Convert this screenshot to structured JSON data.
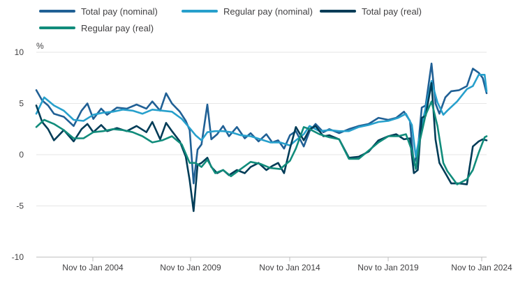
{
  "chart_data": {
    "type": "line",
    "title": "",
    "xlabel": "",
    "ylabel": "%",
    "ylim": [
      -10,
      10
    ],
    "yticks": [
      10,
      5,
      0,
      -5,
      -10
    ],
    "xticks": [
      "Nov to Jan 2004",
      "Nov to Jan 2009",
      "Nov to Jan 2014",
      "Nov to Jan 2019",
      "Nov to Jan 2024"
    ],
    "xrange": [
      2001.1,
      2024.0
    ],
    "grid": "horizontal",
    "legend_position": "top-left",
    "series": [
      {
        "name": "Total pay (nominal)",
        "color": "#206095",
        "x": [
          2001.1,
          2001.4,
          2001.7,
          2002.0,
          2002.5,
          2003.0,
          2003.4,
          2003.7,
          2004.0,
          2004.4,
          2004.7,
          2005.2,
          2005.7,
          2006.2,
          2006.7,
          2007.0,
          2007.4,
          2007.7,
          2008.0,
          2008.4,
          2008.7,
          2008.9,
          2009.1,
          2009.3,
          2009.5,
          2009.8,
          2010.0,
          2010.3,
          2010.6,
          2010.9,
          2011.3,
          2011.7,
          2012.0,
          2012.4,
          2012.8,
          2013.1,
          2013.4,
          2013.7,
          2014.0,
          2014.3,
          2014.7,
          2015.0,
          2015.3,
          2015.7,
          2016.0,
          2016.5,
          2017.0,
          2017.5,
          2018.0,
          2018.5,
          2019.0,
          2019.4,
          2019.8,
          2020.1,
          2020.3,
          2020.5,
          2020.7,
          2020.9,
          2021.2,
          2021.4,
          2021.6,
          2021.9,
          2022.2,
          2022.6,
          2023.0,
          2023.3,
          2023.6,
          2023.8,
          2024.0
        ],
        "values": [
          6.3,
          5.3,
          4.8,
          4.0,
          3.7,
          2.8,
          4.3,
          5.0,
          3.5,
          4.5,
          3.9,
          4.6,
          4.5,
          4.9,
          4.5,
          5.2,
          4.3,
          6.0,
          5.0,
          4.2,
          3.3,
          2.4,
          -2.8,
          0.5,
          1.0,
          4.9,
          1.5,
          2.0,
          2.8,
          1.8,
          2.7,
          1.6,
          2.1,
          1.3,
          2.0,
          1.2,
          1.4,
          0.6,
          1.9,
          2.3,
          0.8,
          2.3,
          3.0,
          2.2,
          2.5,
          2.1,
          2.5,
          2.8,
          3.0,
          3.6,
          3.4,
          3.6,
          4.2,
          3.3,
          -1.0,
          0.4,
          4.6,
          4.8,
          8.9,
          5.0,
          4.0,
          5.6,
          6.2,
          6.3,
          6.7,
          8.4,
          8.0,
          7.5,
          6.0
        ]
      },
      {
        "name": "Regular pay (nominal)",
        "color": "#27a0cc",
        "x": [
          2001.1,
          2001.5,
          2002.0,
          2002.5,
          2003.0,
          2003.5,
          2004.0,
          2004.5,
          2005.0,
          2005.5,
          2006.0,
          2006.5,
          2007.0,
          2007.5,
          2008.0,
          2008.5,
          2008.9,
          2009.2,
          2009.5,
          2009.8,
          2010.2,
          2010.6,
          2011.0,
          2011.5,
          2012.0,
          2012.5,
          2013.0,
          2013.5,
          2014.0,
          2014.3,
          2014.7,
          2015.0,
          2015.5,
          2016.0,
          2016.5,
          2017.0,
          2017.5,
          2018.0,
          2018.5,
          2019.0,
          2019.5,
          2019.9,
          2020.2,
          2020.4,
          2020.6,
          2020.9,
          2021.2,
          2021.5,
          2021.8,
          2022.0,
          2022.5,
          2023.0,
          2023.3,
          2023.6,
          2023.9,
          2024.0
        ],
        "values": [
          4.0,
          5.6,
          4.8,
          4.3,
          3.4,
          3.3,
          3.9,
          4.1,
          4.2,
          4.4,
          4.3,
          4.0,
          4.4,
          4.3,
          4.2,
          3.5,
          2.6,
          1.9,
          1.4,
          2.2,
          2.3,
          2.3,
          2.2,
          1.9,
          1.8,
          1.5,
          1.2,
          1.2,
          0.9,
          1.4,
          2.0,
          2.8,
          2.3,
          2.4,
          2.3,
          2.3,
          2.7,
          2.9,
          3.2,
          3.3,
          3.6,
          4.0,
          2.9,
          -0.2,
          1.9,
          4.6,
          7.2,
          5.1,
          3.9,
          4.3,
          5.2,
          6.4,
          6.7,
          7.8,
          7.8,
          6.2
        ]
      },
      {
        "name": "Total pay (real)",
        "color": "#003c57",
        "x": [
          2001.1,
          2001.4,
          2001.7,
          2002.0,
          2002.5,
          2003.0,
          2003.4,
          2003.7,
          2004.0,
          2004.4,
          2004.7,
          2005.2,
          2005.7,
          2006.2,
          2006.7,
          2007.0,
          2007.4,
          2007.7,
          2008.0,
          2008.4,
          2008.7,
          2008.9,
          2009.1,
          2009.3,
          2009.5,
          2009.8,
          2010.0,
          2010.3,
          2010.6,
          2010.9,
          2011.3,
          2011.7,
          2012.0,
          2012.4,
          2012.8,
          2013.1,
          2013.4,
          2013.7,
          2014.0,
          2014.3,
          2014.7,
          2015.0,
          2015.3,
          2015.7,
          2016.0,
          2016.5,
          2017.0,
          2017.5,
          2018.0,
          2018.5,
          2019.0,
          2019.4,
          2019.8,
          2020.1,
          2020.3,
          2020.5,
          2020.7,
          2020.9,
          2021.2,
          2021.4,
          2021.6,
          2021.9,
          2022.2,
          2022.6,
          2023.0,
          2023.3,
          2023.6,
          2023.8,
          2024.0
        ],
        "values": [
          4.8,
          3.2,
          2.5,
          1.4,
          2.4,
          1.3,
          2.5,
          3.0,
          2.2,
          2.9,
          2.3,
          2.6,
          2.3,
          2.8,
          2.2,
          3.2,
          1.5,
          3.1,
          2.3,
          1.3,
          -0.2,
          -2.5,
          -5.5,
          -1.0,
          -0.8,
          -0.3,
          -1.2,
          -1.8,
          -1.5,
          -2.0,
          -1.5,
          -1.8,
          -1.2,
          -0.8,
          -1.5,
          -1.1,
          -0.8,
          -1.8,
          0.6,
          2.7,
          1.4,
          2.5,
          2.8,
          1.8,
          1.9,
          1.5,
          -0.3,
          -0.2,
          0.3,
          1.4,
          1.8,
          2.0,
          1.5,
          1.6,
          -1.8,
          -1.5,
          3.6,
          3.8,
          7.0,
          1.5,
          -0.8,
          -1.8,
          -2.8,
          -2.8,
          -2.9,
          0.8,
          1.3,
          1.5,
          1.4
        ]
      },
      {
        "name": "Regular pay (real)",
        "color": "#118c7b",
        "x": [
          2001.1,
          2001.5,
          2002.0,
          2002.5,
          2003.0,
          2003.5,
          2004.0,
          2004.5,
          2005.0,
          2005.5,
          2006.0,
          2006.5,
          2007.0,
          2007.5,
          2008.0,
          2008.5,
          2008.9,
          2009.2,
          2009.5,
          2009.8,
          2010.2,
          2010.6,
          2011.0,
          2011.5,
          2012.0,
          2012.5,
          2013.0,
          2013.5,
          2014.0,
          2014.3,
          2014.7,
          2015.0,
          2015.5,
          2016.0,
          2016.5,
          2017.0,
          2017.5,
          2018.0,
          2018.5,
          2019.0,
          2019.5,
          2019.9,
          2020.2,
          2020.4,
          2020.6,
          2020.9,
          2021.2,
          2021.5,
          2021.8,
          2022.0,
          2022.5,
          2023.0,
          2023.3,
          2023.6,
          2023.9,
          2024.0
        ],
        "values": [
          2.7,
          3.4,
          3.0,
          2.4,
          1.6,
          1.6,
          2.2,
          2.3,
          2.5,
          2.4,
          2.2,
          1.8,
          1.2,
          1.4,
          1.8,
          1.0,
          -0.8,
          -0.8,
          -1.2,
          -0.5,
          -1.8,
          -1.5,
          -2.1,
          -1.4,
          -0.7,
          -0.9,
          -1.3,
          -1.4,
          -0.6,
          0.6,
          2.7,
          2.5,
          2.0,
          1.7,
          1.5,
          -0.4,
          -0.4,
          0.4,
          1.2,
          1.8,
          1.8,
          2.0,
          0.4,
          -1.4,
          1.3,
          3.9,
          5.2,
          2.8,
          -0.8,
          -1.6,
          -2.9,
          -2.4,
          -1.5,
          0.2,
          1.7,
          1.8
        ]
      }
    ]
  }
}
